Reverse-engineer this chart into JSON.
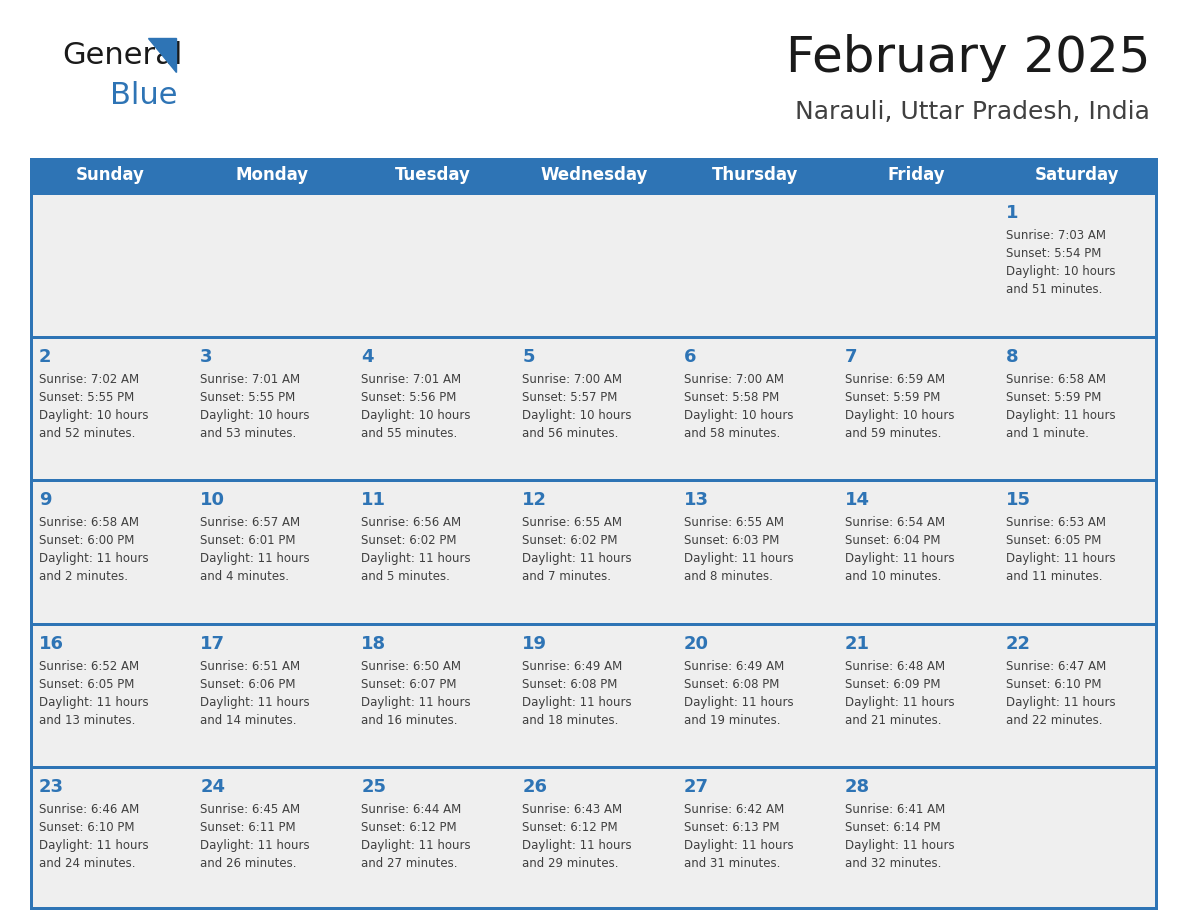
{
  "title": "February 2025",
  "subtitle": "Narauli, Uttar Pradesh, India",
  "days_of_week": [
    "Sunday",
    "Monday",
    "Tuesday",
    "Wednesday",
    "Thursday",
    "Friday",
    "Saturday"
  ],
  "header_bg": "#2E74B5",
  "header_text_color": "#FFFFFF",
  "cell_bg": "#EFEFEF",
  "separator_color": "#2E74B5",
  "day_num_color": "#2E74B5",
  "info_text_color": "#404040",
  "title_color": "#1A1A1A",
  "subtitle_color": "#404040",
  "logo_black": "#1A1A1A",
  "logo_blue": "#2E74B5",
  "calendar_data": [
    [
      {
        "day": null,
        "sunrise": null,
        "sunset": null,
        "daylight_h": null,
        "daylight_m": null
      },
      {
        "day": null,
        "sunrise": null,
        "sunset": null,
        "daylight_h": null,
        "daylight_m": null
      },
      {
        "day": null,
        "sunrise": null,
        "sunset": null,
        "daylight_h": null,
        "daylight_m": null
      },
      {
        "day": null,
        "sunrise": null,
        "sunset": null,
        "daylight_h": null,
        "daylight_m": null
      },
      {
        "day": null,
        "sunrise": null,
        "sunset": null,
        "daylight_h": null,
        "daylight_m": null
      },
      {
        "day": null,
        "sunrise": null,
        "sunset": null,
        "daylight_h": null,
        "daylight_m": null
      },
      {
        "day": 1,
        "sunrise": "7:03 AM",
        "sunset": "5:54 PM",
        "daylight_h": "10 hours",
        "daylight_m": "and 51 minutes."
      }
    ],
    [
      {
        "day": 2,
        "sunrise": "7:02 AM",
        "sunset": "5:55 PM",
        "daylight_h": "10 hours",
        "daylight_m": "and 52 minutes."
      },
      {
        "day": 3,
        "sunrise": "7:01 AM",
        "sunset": "5:55 PM",
        "daylight_h": "10 hours",
        "daylight_m": "and 53 minutes."
      },
      {
        "day": 4,
        "sunrise": "7:01 AM",
        "sunset": "5:56 PM",
        "daylight_h": "10 hours",
        "daylight_m": "and 55 minutes."
      },
      {
        "day": 5,
        "sunrise": "7:00 AM",
        "sunset": "5:57 PM",
        "daylight_h": "10 hours",
        "daylight_m": "and 56 minutes."
      },
      {
        "day": 6,
        "sunrise": "7:00 AM",
        "sunset": "5:58 PM",
        "daylight_h": "10 hours",
        "daylight_m": "and 58 minutes."
      },
      {
        "day": 7,
        "sunrise": "6:59 AM",
        "sunset": "5:59 PM",
        "daylight_h": "10 hours",
        "daylight_m": "and 59 minutes."
      },
      {
        "day": 8,
        "sunrise": "6:58 AM",
        "sunset": "5:59 PM",
        "daylight_h": "11 hours",
        "daylight_m": "and 1 minute."
      }
    ],
    [
      {
        "day": 9,
        "sunrise": "6:58 AM",
        "sunset": "6:00 PM",
        "daylight_h": "11 hours",
        "daylight_m": "and 2 minutes."
      },
      {
        "day": 10,
        "sunrise": "6:57 AM",
        "sunset": "6:01 PM",
        "daylight_h": "11 hours",
        "daylight_m": "and 4 minutes."
      },
      {
        "day": 11,
        "sunrise": "6:56 AM",
        "sunset": "6:02 PM",
        "daylight_h": "11 hours",
        "daylight_m": "and 5 minutes."
      },
      {
        "day": 12,
        "sunrise": "6:55 AM",
        "sunset": "6:02 PM",
        "daylight_h": "11 hours",
        "daylight_m": "and 7 minutes."
      },
      {
        "day": 13,
        "sunrise": "6:55 AM",
        "sunset": "6:03 PM",
        "daylight_h": "11 hours",
        "daylight_m": "and 8 minutes."
      },
      {
        "day": 14,
        "sunrise": "6:54 AM",
        "sunset": "6:04 PM",
        "daylight_h": "11 hours",
        "daylight_m": "and 10 minutes."
      },
      {
        "day": 15,
        "sunrise": "6:53 AM",
        "sunset": "6:05 PM",
        "daylight_h": "11 hours",
        "daylight_m": "and 11 minutes."
      }
    ],
    [
      {
        "day": 16,
        "sunrise": "6:52 AM",
        "sunset": "6:05 PM",
        "daylight_h": "11 hours",
        "daylight_m": "and 13 minutes."
      },
      {
        "day": 17,
        "sunrise": "6:51 AM",
        "sunset": "6:06 PM",
        "daylight_h": "11 hours",
        "daylight_m": "and 14 minutes."
      },
      {
        "day": 18,
        "sunrise": "6:50 AM",
        "sunset": "6:07 PM",
        "daylight_h": "11 hours",
        "daylight_m": "and 16 minutes."
      },
      {
        "day": 19,
        "sunrise": "6:49 AM",
        "sunset": "6:08 PM",
        "daylight_h": "11 hours",
        "daylight_m": "and 18 minutes."
      },
      {
        "day": 20,
        "sunrise": "6:49 AM",
        "sunset": "6:08 PM",
        "daylight_h": "11 hours",
        "daylight_m": "and 19 minutes."
      },
      {
        "day": 21,
        "sunrise": "6:48 AM",
        "sunset": "6:09 PM",
        "daylight_h": "11 hours",
        "daylight_m": "and 21 minutes."
      },
      {
        "day": 22,
        "sunrise": "6:47 AM",
        "sunset": "6:10 PM",
        "daylight_h": "11 hours",
        "daylight_m": "and 22 minutes."
      }
    ],
    [
      {
        "day": 23,
        "sunrise": "6:46 AM",
        "sunset": "6:10 PM",
        "daylight_h": "11 hours",
        "daylight_m": "and 24 minutes."
      },
      {
        "day": 24,
        "sunrise": "6:45 AM",
        "sunset": "6:11 PM",
        "daylight_h": "11 hours",
        "daylight_m": "and 26 minutes."
      },
      {
        "day": 25,
        "sunrise": "6:44 AM",
        "sunset": "6:12 PM",
        "daylight_h": "11 hours",
        "daylight_m": "and 27 minutes."
      },
      {
        "day": 26,
        "sunrise": "6:43 AM",
        "sunset": "6:12 PM",
        "daylight_h": "11 hours",
        "daylight_m": "and 29 minutes."
      },
      {
        "day": 27,
        "sunrise": "6:42 AM",
        "sunset": "6:13 PM",
        "daylight_h": "11 hours",
        "daylight_m": "and 31 minutes."
      },
      {
        "day": 28,
        "sunrise": "6:41 AM",
        "sunset": "6:14 PM",
        "daylight_h": "11 hours",
        "daylight_m": "and 32 minutes."
      },
      {
        "day": null,
        "sunrise": null,
        "sunset": null,
        "daylight_h": null,
        "daylight_m": null
      }
    ]
  ]
}
